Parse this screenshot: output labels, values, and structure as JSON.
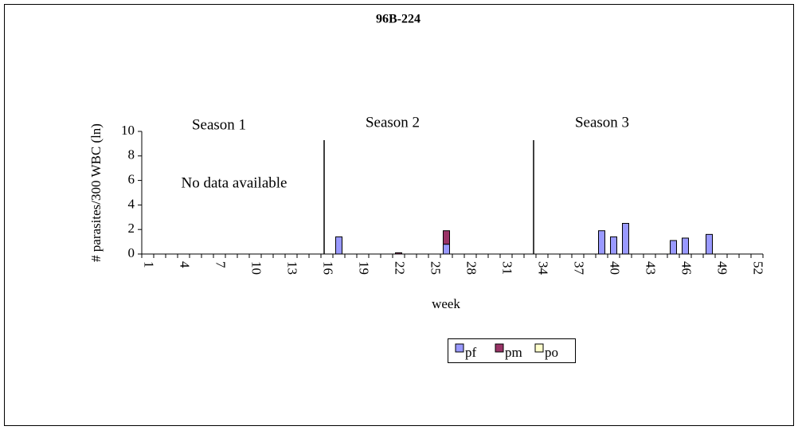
{
  "chart_data": {
    "type": "bar",
    "stacked": true,
    "title": "96B-224",
    "ylabel": "# parasites/300 WBC (ln)",
    "xlabel": "week",
    "annotations": [
      "Season 1",
      "Season 2",
      "Season 3",
      "No data available"
    ],
    "categories": [
      "1",
      null,
      null,
      "4",
      null,
      null,
      "7",
      null,
      null,
      "10",
      null,
      null,
      "13",
      null,
      null,
      "16",
      null,
      null,
      "19",
      null,
      null,
      "22",
      null,
      null,
      "25",
      null,
      null,
      "28",
      null,
      null,
      "31",
      null,
      null,
      "34",
      null,
      null,
      "37",
      null,
      null,
      "40",
      null,
      null,
      "43",
      null,
      null,
      "46",
      null,
      null,
      "49",
      null,
      null,
      "52"
    ],
    "series": [
      {
        "name": "pf",
        "color": "#9999ff",
        "values": [
          0,
          0,
          0,
          0,
          0,
          0,
          0,
          0,
          0,
          0,
          0,
          0,
          0,
          0,
          0,
          0,
          1.4,
          0,
          0,
          0,
          0,
          0,
          0,
          0,
          0,
          0.8,
          0,
          0,
          0,
          0,
          0,
          0,
          0,
          0,
          0,
          0,
          0,
          0,
          1.9,
          1.4,
          2.5,
          0,
          0,
          0,
          1.1,
          1.3,
          0,
          1.6,
          0,
          0,
          0,
          0
        ]
      },
      {
        "name": "pm",
        "color": "#993366",
        "values": [
          0,
          0,
          0,
          0,
          0,
          0,
          0,
          0,
          0,
          0,
          0,
          0,
          0,
          0,
          0,
          0,
          0,
          0,
          0,
          0,
          0,
          0.1,
          0,
          0,
          0,
          1.1,
          0,
          0,
          0,
          0,
          0,
          0,
          0,
          0,
          0,
          0,
          0,
          0,
          0,
          0,
          0,
          0,
          0,
          0,
          0,
          0,
          0,
          0,
          0,
          0,
          0,
          0
        ]
      },
      {
        "name": "po",
        "color": "#ffffcc",
        "values": [
          0,
          0,
          0,
          0,
          0,
          0,
          0,
          0,
          0,
          0,
          0,
          0,
          0,
          0,
          0,
          0,
          0,
          0,
          0,
          0,
          0,
          0,
          0,
          0,
          0,
          0,
          0,
          0,
          0,
          0,
          0,
          0,
          0,
          0,
          0,
          0,
          0,
          0,
          0,
          0,
          0,
          0,
          0,
          0,
          0,
          0,
          0,
          0,
          0,
          0,
          0,
          0
        ]
      }
    ],
    "ylim": [
      0,
      10
    ],
    "yticks": [
      0,
      2,
      4,
      6,
      8,
      10
    ],
    "legend": "bottom"
  }
}
